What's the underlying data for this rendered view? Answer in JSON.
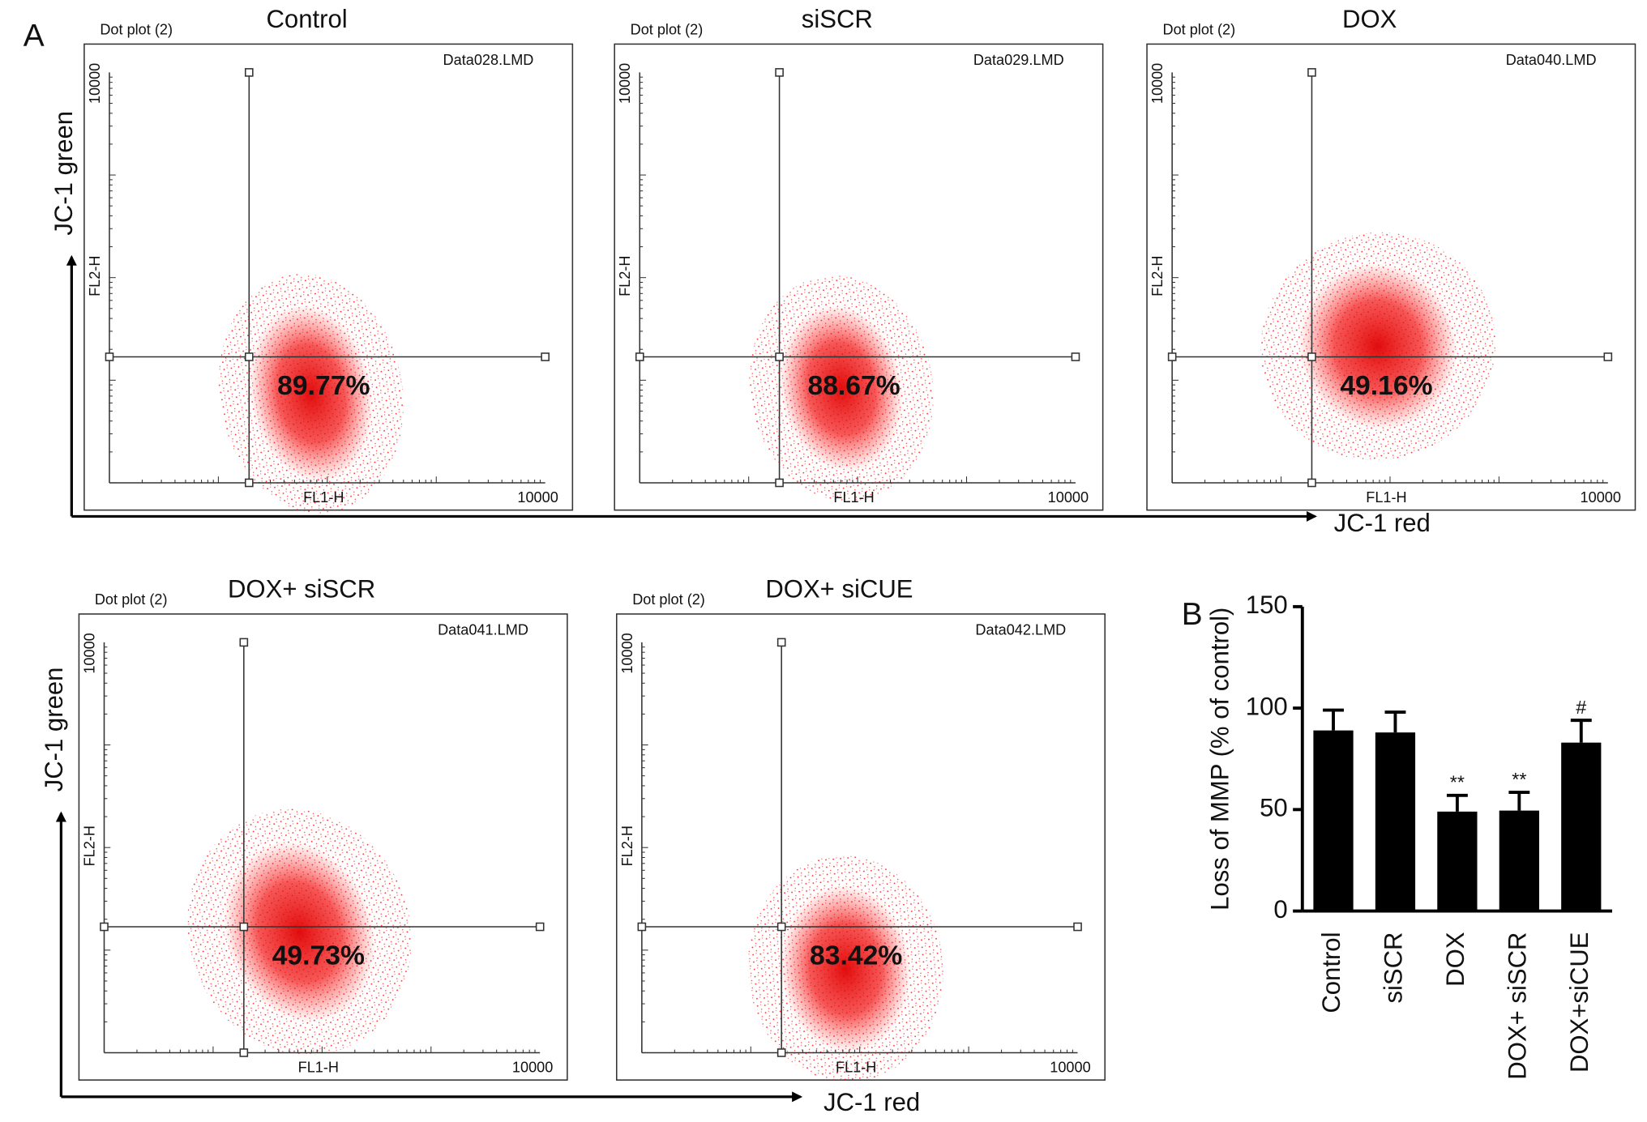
{
  "panel_a": {
    "label": "A",
    "rows": [
      {
        "y_label": "JC-1 green",
        "x_label": "JC-1 red"
      },
      {
        "y_label": "JC-1 green",
        "x_label": "JC-1 red"
      }
    ],
    "plots": [
      {
        "title": "Control",
        "plot_name": "Dot plot (2)",
        "file": "Data028.LMD",
        "x_label": "FL1-H",
        "y_label": "FL2-H",
        "x_max_label": "10000",
        "y_max_label": "10000",
        "percentage": "89.77%"
      },
      {
        "title": "siSCR",
        "plot_name": "Dot plot (2)",
        "file": "Data029.LMD",
        "x_label": "FL1-H",
        "y_label": "FL2-H",
        "x_max_label": "10000",
        "y_max_label": "10000",
        "percentage": "88.67%"
      },
      {
        "title": "DOX",
        "plot_name": "Dot plot (2)",
        "file": "Data040.LMD",
        "x_label": "FL1-H",
        "y_label": "FL2-H",
        "x_max_label": "10000",
        "y_max_label": "10000",
        "percentage": "49.16%"
      },
      {
        "title": "DOX+ siSCR",
        "plot_name": "Dot plot (2)",
        "file": "Data041.LMD",
        "x_label": "FL1-H",
        "y_label": "FL2-H",
        "x_max_label": "10000",
        "y_max_label": "10000",
        "percentage": "49.73%"
      },
      {
        "title": "DOX+ siCUE",
        "plot_name": "Dot plot (2)",
        "file": "Data042.LMD",
        "x_label": "FL1-H",
        "y_label": "FL2-H",
        "x_max_label": "10000",
        "y_max_label": "10000",
        "percentage": "83.42%"
      }
    ]
  },
  "chart_data": {
    "type": "bar",
    "panel_label": "B",
    "y_label": "Loss of MMP (% of control)",
    "categories": [
      "Control",
      "siSCR",
      "DOX",
      "DOX+ siSCR",
      "DOX+siCUE"
    ],
    "values": [
      89,
      88,
      49,
      49.5,
      83
    ],
    "errors": [
      10,
      10,
      8,
      9,
      11
    ],
    "value_annotations": [
      null,
      null,
      "**",
      "**",
      "#"
    ],
    "color": "#000000",
    "ylim": [
      0,
      150
    ],
    "yticks": [
      0,
      50,
      100,
      150
    ]
  }
}
